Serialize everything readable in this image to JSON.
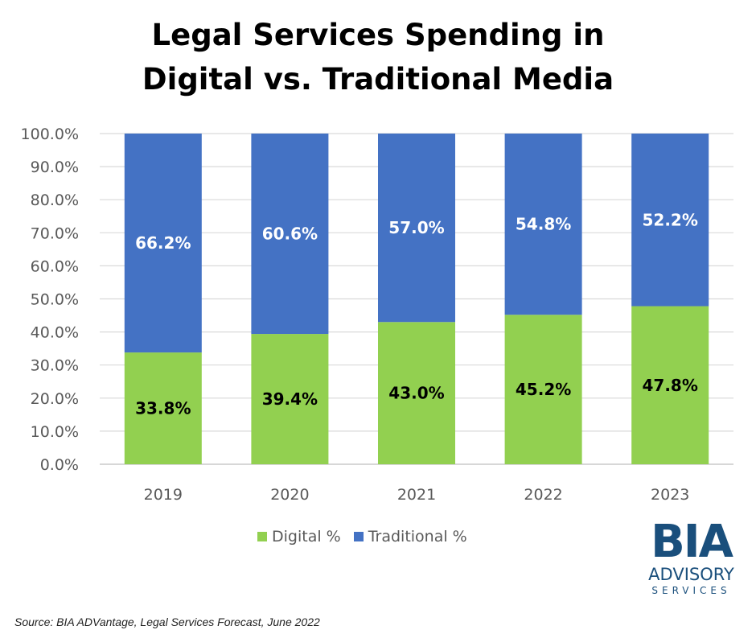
{
  "title_line1": "Legal Services Spending in",
  "title_line2": "Digital vs. Traditional Media",
  "chart_data": {
    "type": "bar",
    "stacked": true,
    "categories": [
      "2019",
      "2020",
      "2021",
      "2022",
      "2023"
    ],
    "series": [
      {
        "name": "Digital %",
        "values": [
          33.8,
          39.4,
          43.0,
          45.2,
          47.8
        ],
        "labels": [
          "33.8%",
          "39.4%",
          "43.0%",
          "45.2%",
          "47.8%"
        ],
        "color": "#92d050"
      },
      {
        "name": "Traditional %",
        "values": [
          66.2,
          60.6,
          57.0,
          54.8,
          52.2
        ],
        "labels": [
          "66.2%",
          "60.6%",
          "57.0%",
          "54.8%",
          "52.2%"
        ],
        "color": "#4472c4"
      }
    ],
    "ylim": [
      0,
      100
    ],
    "yticks": [
      "0.0%",
      "10.0%",
      "20.0%",
      "30.0%",
      "40.0%",
      "50.0%",
      "60.0%",
      "70.0%",
      "80.0%",
      "90.0%",
      "100.0%"
    ],
    "grid": true,
    "legend_position": "bottom"
  },
  "legend": {
    "digital": "Digital %",
    "traditional": "Traditional %"
  },
  "logo": {
    "main": "BIA",
    "line1": "ADVISORY",
    "line2": "SERVICES"
  },
  "source": "Source: BIA ADVantage, Legal Services Forecast, June 2022"
}
